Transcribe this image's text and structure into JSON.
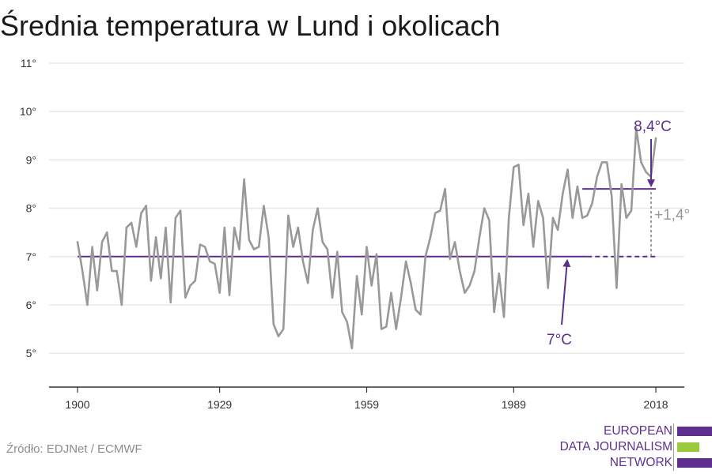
{
  "title": "Średnia temperatura w Lund i okolicach",
  "source": "Źródło: EDJNet / ECMWF",
  "logo": {
    "lines": [
      "EUROPEAN",
      "DATA JOURNALISM",
      "NETWORK"
    ],
    "colors": [
      "#5e2f8f",
      "#9bcb3c",
      "#5e2f8f"
    ]
  },
  "chart_data": {
    "type": "line",
    "xlim": [
      1900,
      2018
    ],
    "ylim": [
      4.3,
      11
    ],
    "x_ticks": [
      1900,
      1929,
      1959,
      1989,
      2018
    ],
    "x_tick_labels": [
      "1900",
      "1929",
      "1959",
      "1989",
      "2018"
    ],
    "y_ticks": [
      5,
      6,
      7,
      8,
      9,
      10,
      11
    ],
    "y_tick_labels": [
      "5°",
      "6°",
      "7°",
      "8°",
      "9°",
      "10°",
      "11°"
    ],
    "grid": true,
    "series": [
      {
        "color": "#999999",
        "x_start": 1900,
        "values": [
          7.3,
          6.7,
          6.0,
          7.2,
          6.3,
          7.3,
          7.5,
          6.7,
          6.7,
          6.0,
          7.6,
          7.7,
          7.2,
          7.9,
          8.05,
          6.5,
          7.4,
          6.55,
          7.6,
          6.05,
          7.8,
          7.95,
          6.15,
          6.4,
          6.5,
          7.25,
          7.2,
          6.9,
          6.85,
          6.25,
          7.6,
          6.2,
          7.6,
          7.15,
          8.6,
          7.35,
          7.15,
          7.2,
          8.05,
          7.4,
          5.6,
          5.35,
          5.5,
          7.85,
          7.2,
          7.6,
          6.9,
          6.45,
          7.55,
          8.0,
          7.3,
          7.15,
          6.15,
          7.1,
          5.85,
          5.65,
          5.1,
          6.6,
          5.8,
          7.2,
          6.4,
          7.05,
          5.5,
          5.55,
          6.25,
          5.5,
          6.15,
          6.9,
          6.45,
          5.9,
          5.8,
          7.0,
          7.4,
          7.9,
          7.95,
          8.4,
          6.95,
          7.3,
          6.7,
          6.25,
          6.4,
          6.7,
          7.4,
          8.0,
          7.75,
          5.85,
          6.65,
          5.75,
          7.8,
          8.85,
          8.9,
          7.65,
          8.3,
          7.2,
          8.15,
          7.8,
          6.35,
          7.8,
          7.55,
          8.3,
          8.8,
          7.8,
          8.45,
          7.8,
          7.85,
          8.1,
          8.65,
          8.95,
          8.95,
          8.25,
          6.35,
          8.5,
          7.8,
          7.95,
          9.65,
          8.95,
          8.75,
          8.65,
          9.45
        ]
      }
    ],
    "reference_lines": [
      {
        "label": "7°C",
        "value": 7.0,
        "x_from": 1900,
        "x_to": 2018,
        "dashed_from": 2004
      },
      {
        "label": "8,4°C",
        "value": 8.4,
        "x_from": 2003,
        "x_to": 2018
      }
    ],
    "difference_label": "+1,4°",
    "accent_color": "#5e2f8f",
    "annotation_color": "#999999"
  }
}
